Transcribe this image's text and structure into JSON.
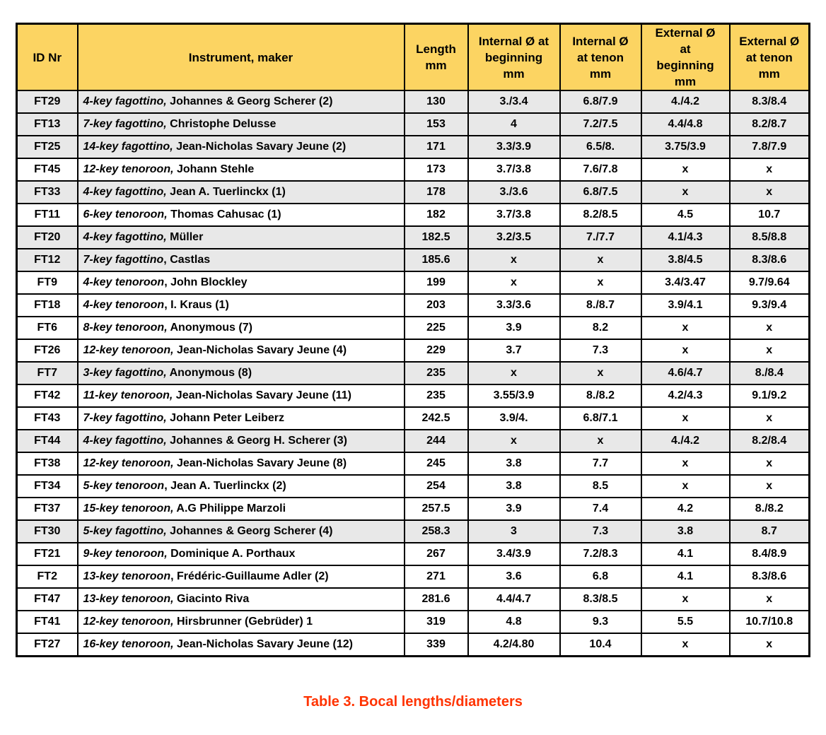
{
  "caption": "Table 3. Bocal lengths/diameters",
  "colors": {
    "header_bg": "#FCD462",
    "row_shaded_bg": "#E8E8E8",
    "row_bg": "#FFFFFF",
    "border": "#000000",
    "caption_text": "#FF3300"
  },
  "table": {
    "columns": [
      "ID Nr",
      "Instrument, maker",
      "Length\nmm",
      "Internal Ø at\nbeginning\nmm",
      "Internal Ø\nat tenon\nmm",
      "External Ø\nat\nbeginning\nmm",
      "External Ø\nat tenon\nmm"
    ],
    "rows": [
      {
        "id": "FT29",
        "instrument": "4-key fagottino,",
        "maker": "Johannes & Georg Scherer (2)",
        "length": "130",
        "internal_beginning": "3./3.4",
        "internal_tenon": "6.8/7.9",
        "external_beginning": "4./4.2",
        "external_tenon": "8.3/8.4",
        "shaded": true
      },
      {
        "id": "FT13",
        "instrument": "7-key fagottino,",
        "maker": "Christophe Delusse",
        "length": "153",
        "internal_beginning": "4",
        "internal_tenon": "7.2/7.5",
        "external_beginning": "4.4/4.8",
        "external_tenon": "8.2/8.7",
        "shaded": true
      },
      {
        "id": "FT25",
        "instrument": "14-key fagottino,",
        "maker": "Jean-Nicholas Savary Jeune (2)",
        "length": "171",
        "internal_beginning": "3.3/3.9",
        "internal_tenon": "6.5/8.",
        "external_beginning": "3.75/3.9",
        "external_tenon": "7.8/7.9",
        "shaded": true
      },
      {
        "id": "FT45",
        "instrument": "12-key tenoroon,",
        "maker": "Johann Stehle",
        "length": "173",
        "internal_beginning": "3.7/3.8",
        "internal_tenon": "7.6/7.8",
        "external_beginning": "x",
        "external_tenon": "x",
        "shaded": false
      },
      {
        "id": "FT33",
        "instrument": "4-key fagottino,",
        "maker": "Jean A. Tuerlinckx (1)",
        "length": "178",
        "internal_beginning": "3./3.6",
        "internal_tenon": "6.8/7.5",
        "external_beginning": "x",
        "external_tenon": "x",
        "shaded": true
      },
      {
        "id": "FT11",
        "instrument": "6-key tenoroon,",
        "maker": "Thomas Cahusac (1)",
        "length": "182",
        "internal_beginning": "3.7/3.8",
        "internal_tenon": "8.2/8.5",
        "external_beginning": "4.5",
        "external_tenon": "10.7",
        "shaded": false
      },
      {
        "id": "FT20",
        "instrument": "4-key fagottino,",
        "maker": "Müller",
        "length": "182.5",
        "internal_beginning": "3.2/3.5",
        "internal_tenon": "7./7.7",
        "external_beginning": "4.1/4.3",
        "external_tenon": "8.5/8.8",
        "shaded": true
      },
      {
        "id": "FT12",
        "instrument": "7-key fagottino",
        "maker": ", Castlas",
        "length": "185.6",
        "internal_beginning": "x",
        "internal_tenon": "x",
        "external_beginning": "3.8/4.5",
        "external_tenon": "8.3/8.6",
        "shaded": true
      },
      {
        "id": "FT9",
        "instrument": "4-key tenoroon",
        "maker": ", John Blockley",
        "length": "199",
        "internal_beginning": "x",
        "internal_tenon": "x",
        "external_beginning": "3.4/3.47",
        "external_tenon": "9.7/9.64",
        "shaded": false
      },
      {
        "id": "FT18",
        "instrument": "4-key tenoroon",
        "maker": ", I. Kraus (1)",
        "length": "203",
        "internal_beginning": "3.3/3.6",
        "internal_tenon": "8./8.7",
        "external_beginning": "3.9/4.1",
        "external_tenon": "9.3/9.4",
        "shaded": false
      },
      {
        "id": "FT6",
        "instrument": "8-key tenoroon,",
        "maker": "Anonymous (7)",
        "length": "225",
        "internal_beginning": "3.9",
        "internal_tenon": "8.2",
        "external_beginning": "x",
        "external_tenon": "x",
        "shaded": false
      },
      {
        "id": "FT26",
        "instrument": "12-key tenoroon,",
        "maker": "Jean-Nicholas Savary Jeune (4)",
        "length": "229",
        "internal_beginning": "3.7",
        "internal_tenon": "7.3",
        "external_beginning": "x",
        "external_tenon": "x",
        "shaded": false
      },
      {
        "id": "FT7",
        "instrument": "3-key fagottino,",
        "maker": "Anonymous (8)",
        "length": "235",
        "internal_beginning": "x",
        "internal_tenon": "x",
        "external_beginning": "4.6/4.7",
        "external_tenon": "8./8.4",
        "shaded": true
      },
      {
        "id": "FT42",
        "instrument": "11-key tenoroon,",
        "maker": "Jean-Nicholas Savary Jeune (11)",
        "length": "235",
        "internal_beginning": "3.55/3.9",
        "internal_tenon": "8./8.2",
        "external_beginning": "4.2/4.3",
        "external_tenon": "9.1/9.2",
        "shaded": false
      },
      {
        "id": "FT43",
        "instrument": "7-key fagottino,",
        "maker": "Johann Peter Leiberz",
        "length": "242.5",
        "internal_beginning": "3.9/4.",
        "internal_tenon": "6.8/7.1",
        "external_beginning": "x",
        "external_tenon": "x",
        "shaded": false
      },
      {
        "id": "FT44",
        "instrument": "4-key fagottino,",
        "maker": "Johannes & Georg H. Scherer (3)",
        "length": "244",
        "internal_beginning": "x",
        "internal_tenon": "x",
        "external_beginning": "4./4.2",
        "external_tenon": "8.2/8.4",
        "shaded": true
      },
      {
        "id": "FT38",
        "instrument": "12-key tenoroon,",
        "maker": "Jean-Nicholas Savary Jeune (8)",
        "length": "245",
        "internal_beginning": "3.8",
        "internal_tenon": "7.7",
        "external_beginning": "x",
        "external_tenon": "x",
        "shaded": false
      },
      {
        "id": "FT34",
        "instrument": "5-key tenoroon",
        "maker": ", Jean A. Tuerlinckx (2)",
        "length": "254",
        "internal_beginning": "3.8",
        "internal_tenon": "8.5",
        "external_beginning": "x",
        "external_tenon": "x",
        "shaded": false
      },
      {
        "id": "FT37",
        "instrument": "15-key tenoroon,",
        "maker": "A.G Philippe Marzoli",
        "length": "257.5",
        "internal_beginning": "3.9",
        "internal_tenon": "7.4",
        "external_beginning": "4.2",
        "external_tenon": "8./8.2",
        "shaded": false
      },
      {
        "id": "FT30",
        "instrument": "5-key fagottino,",
        "maker": "Johannes & Georg Scherer (4)",
        "length": "258.3",
        "internal_beginning": "3",
        "internal_tenon": "7.3",
        "external_beginning": "3.8",
        "external_tenon": "8.7",
        "shaded": true
      },
      {
        "id": "FT21",
        "instrument": "9-key tenoroon,",
        "maker": "Dominique A. Porthaux",
        "length": "267",
        "internal_beginning": "3.4/3.9",
        "internal_tenon": "7.2/8.3",
        "external_beginning": "4.1",
        "external_tenon": "8.4/8.9",
        "shaded": false
      },
      {
        "id": "FT2",
        "instrument": "13-key tenoroon",
        "maker": ", Frédéric-Guillaume Adler (2)",
        "length": "271",
        "internal_beginning": "3.6",
        "internal_tenon": "6.8",
        "external_beginning": "4.1",
        "external_tenon": "8.3/8.6",
        "shaded": false
      },
      {
        "id": "FT47",
        "instrument": "13-key tenoroon,",
        "maker": "Giacinto Riva",
        "length": "281.6",
        "internal_beginning": "4.4/4.7",
        "internal_tenon": "8.3/8.5",
        "external_beginning": "x",
        "external_tenon": "x",
        "shaded": false
      },
      {
        "id": "FT41",
        "instrument": "12-key tenoroon,",
        "maker": "Hirsbrunner (Gebrüder) 1",
        "length": "319",
        "internal_beginning": "4.8",
        "internal_tenon": "9.3",
        "external_beginning": "5.5",
        "external_tenon": "10.7/10.8",
        "shaded": false
      },
      {
        "id": "FT27",
        "instrument": "16-key tenoroon,",
        "maker": "Jean-Nicholas Savary Jeune (12)",
        "length": "339",
        "internal_beginning": "4.2/4.80",
        "internal_tenon": "10.4",
        "external_beginning": "x",
        "external_tenon": "x",
        "shaded": false
      }
    ]
  }
}
